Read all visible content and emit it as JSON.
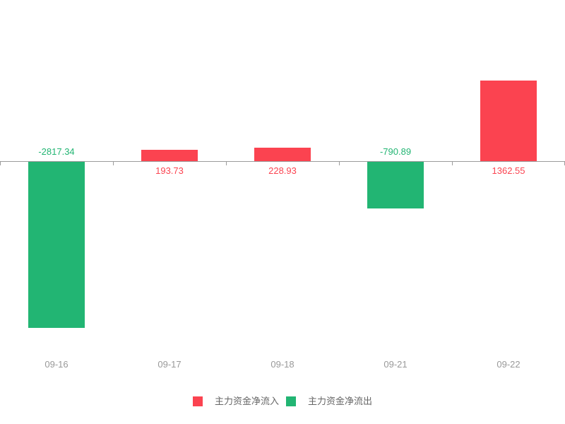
{
  "chart_data": {
    "type": "bar",
    "title": "",
    "xlabel": "",
    "ylabel": "",
    "categories": [
      "09-16",
      "09-17",
      "09-18",
      "09-21",
      "09-22"
    ],
    "values": [
      -2817.34,
      193.73,
      228.93,
      -790.89,
      1362.55
    ],
    "value_labels": [
      "-2817.34",
      "193.73",
      "228.93",
      "-790.89",
      "1362.55"
    ],
    "ylim": [
      -2900,
      1450
    ],
    "grid": false,
    "axis": {
      "zero_line": true,
      "tick_count": 6,
      "axis_color": "#9b9b9b",
      "tick_label_color": "#999999"
    },
    "legend_position": "bottom-center",
    "legend": [
      {
        "label": "主力资金净流入",
        "color": "#fb4350"
      },
      {
        "label": "主力资金净流出",
        "color": "#22b573"
      }
    ],
    "colors": {
      "positive": "#fb4350",
      "negative": "#22b573",
      "legend_text": "#666666"
    }
  }
}
